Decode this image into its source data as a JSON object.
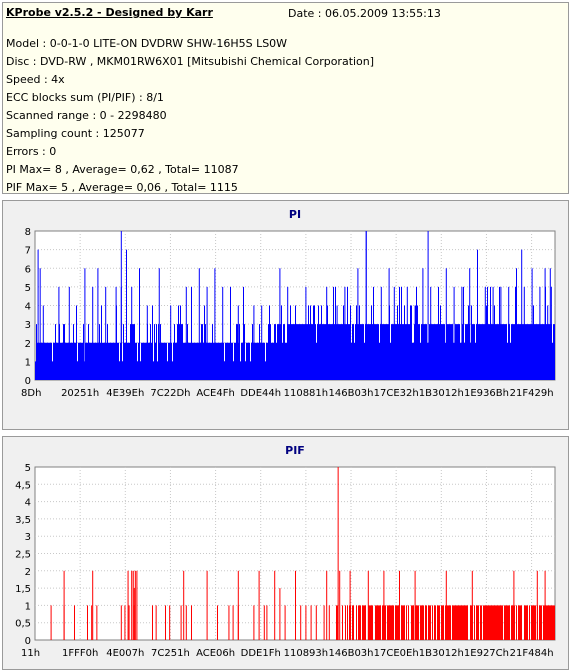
{
  "info": {
    "title": "KProbe v2.5.2 - Designed by Karr",
    "date": "Date : 06.05.2009 13:55:13",
    "lines": [
      "Model : 0-0-1-0 LITE-ON DVDRW SHW-16H5S  LS0W",
      "Disc : DVD-RW , MKM01RW6X01 [Mitsubishi Chemical Corporation]",
      "Speed : 4x",
      "ECC blocks sum (PI/PIF) : 8/1",
      "Scanned range : 0 - 2298480",
      "Sampling count : 125077",
      "Errors : 0",
      "PI Max= 8 , Average= 0,62 , Total= 11087",
      "PIF Max= 5 , Average= 0,06 , Total= 1115"
    ]
  },
  "colors": {
    "pi": "#0000ff",
    "pif": "#ff0000",
    "title": "#000080",
    "plot_bg": "#ffffff",
    "grid": "#c8c8c8"
  },
  "chart_data": [
    {
      "type": "bar",
      "title": "PI",
      "ylim": [
        0,
        8
      ],
      "yticks": [
        "0",
        "1",
        "2",
        "3",
        "4",
        "5",
        "6",
        "7",
        "8"
      ],
      "xticks": [
        "8Dh",
        "20251h",
        "4E39Eh",
        "7C22Dh",
        "ACE4Fh",
        "DDE44h",
        "110881h",
        "146B03h",
        "17CE32h",
        "1B3012h",
        "1E936Bh",
        "21F429h"
      ],
      "baseline": [
        2,
        2,
        2,
        2,
        2,
        2,
        2,
        2,
        2,
        2,
        2,
        3,
        3,
        3,
        3,
        3,
        3,
        3,
        3,
        3,
        3,
        3,
        3,
        3
      ],
      "spikes": [
        [
          0.005,
          7
        ],
        [
          0.009,
          6
        ],
        [
          0.015,
          4
        ],
        [
          0.045,
          5
        ],
        [
          0.065,
          5
        ],
        [
          0.095,
          6
        ],
        [
          0.11,
          5
        ],
        [
          0.12,
          6
        ],
        [
          0.135,
          5
        ],
        [
          0.155,
          5
        ],
        [
          0.165,
          5
        ],
        [
          0.185,
          5
        ],
        [
          0.2,
          6
        ],
        [
          0.215,
          4
        ],
        [
          0.225,
          4
        ],
        [
          0.238,
          6
        ],
        [
          0.26,
          4
        ],
        [
          0.275,
          4
        ],
        [
          0.29,
          5
        ],
        [
          0.3,
          5
        ],
        [
          0.315,
          6
        ],
        [
          0.33,
          5
        ],
        [
          0.345,
          6
        ],
        [
          0.36,
          5
        ],
        [
          0.375,
          5
        ],
        [
          0.39,
          4
        ],
        [
          0.4,
          5
        ],
        [
          0.42,
          4
        ],
        [
          0.435,
          4
        ],
        [
          0.45,
          4
        ],
        [
          0.47,
          6
        ],
        [
          0.485,
          5
        ],
        [
          0.5,
          4
        ],
        [
          0.52,
          5
        ],
        [
          0.535,
          4
        ],
        [
          0.56,
          5
        ],
        [
          0.58,
          4
        ],
        [
          0.595,
          5
        ],
        [
          0.62,
          6
        ],
        [
          0.636,
          8
        ],
        [
          0.65,
          5
        ],
        [
          0.665,
          5
        ],
        [
          0.68,
          6
        ],
        [
          0.69,
          5
        ],
        [
          0.7,
          5
        ],
        [
          0.715,
          5
        ],
        [
          0.73,
          4
        ],
        [
          0.745,
          6
        ],
        [
          0.76,
          5
        ],
        [
          0.775,
          5
        ],
        [
          0.79,
          6
        ],
        [
          0.805,
          5
        ],
        [
          0.82,
          5
        ],
        [
          0.835,
          6
        ],
        [
          0.85,
          7
        ],
        [
          0.865,
          5
        ],
        [
          0.88,
          5
        ],
        [
          0.895,
          5
        ],
        [
          0.91,
          5
        ],
        [
          0.925,
          6
        ],
        [
          0.94,
          5
        ],
        [
          0.955,
          6
        ],
        [
          0.97,
          5
        ],
        [
          0.985,
          4
        ],
        [
          0.98,
          6
        ],
        [
          0.992,
          5
        ]
      ],
      "max_spikes": [
        [
          0.165,
          8
        ],
        [
          0.175,
          7
        ],
        [
          0.636,
          8
        ],
        [
          0.755,
          8
        ],
        [
          0.935,
          7
        ],
        [
          0.99,
          6
        ]
      ]
    },
    {
      "type": "bar",
      "title": "PIF",
      "ylim": [
        0,
        5
      ],
      "yticks": [
        "0",
        "0,5",
        "1",
        "1,5",
        "2",
        "2,5",
        "3",
        "3,5",
        "4",
        "4,5",
        "5"
      ],
      "xticks": [
        "11h",
        "1FFF0h",
        "4E007h",
        "7C251h",
        "ACE06h",
        "DDE1Fh",
        "110893h",
        "146B03h",
        "17CE0Eh",
        "1B3012h",
        "1E927Ch",
        "21F484h"
      ],
      "dense_region": [
        0.58,
        1.0
      ],
      "events_1": [
        0.03,
        0.055,
        0.075,
        0.1,
        0.108,
        0.118,
        0.165,
        0.172,
        0.18,
        0.19,
        0.225,
        0.232,
        0.25,
        0.258,
        0.28,
        0.29,
        0.3,
        0.35,
        0.372,
        0.38,
        0.39,
        0.42,
        0.44,
        0.445,
        0.48,
        0.5,
        0.51,
        0.52,
        0.53,
        0.54,
        0.555,
        0.565
      ],
      "events_2": [
        0.055,
        0.11,
        0.178,
        0.185,
        0.188,
        0.192,
        0.195,
        0.285,
        0.33,
        0.39,
        0.43,
        0.46,
        0.5,
        0.56,
        0.585,
        0.605,
        0.64,
        0.67,
        0.7,
        0.73,
        0.79,
        0.84,
        0.92,
        0.965,
        0.98
      ],
      "events_3": [
        0.19,
        0.47
      ],
      "max_spike": [
        0.582,
        5
      ]
    }
  ]
}
